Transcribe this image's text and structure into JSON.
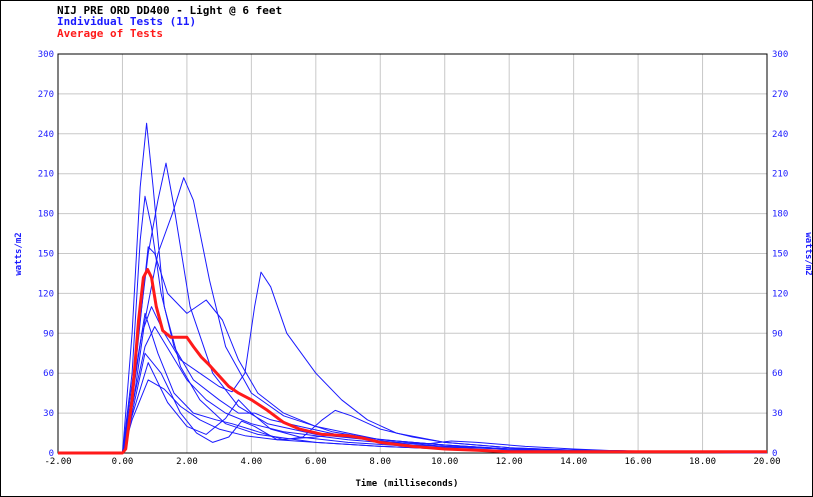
{
  "chart_data": {
    "type": "line",
    "title": "NIJ PRE ORD DD400 - Light @ 6 feet",
    "legend": [
      {
        "label": "Individual Tests (11)",
        "color": "#1a1aff"
      },
      {
        "label": "Average of Tests",
        "color": "#ff1a1a"
      }
    ],
    "xlabel": "Time (milliseconds)",
    "ylabel": "watts/m2",
    "ylabel_right": "watts/m2",
    "xlim": [
      -2,
      20
    ],
    "ylim": [
      0,
      300
    ],
    "x_ticks": [
      "-2.00",
      "0.00",
      "2.00",
      "4.00",
      "6.00",
      "8.00",
      "10.00",
      "12.00",
      "14.00",
      "16.00",
      "18.00",
      "20.00"
    ],
    "y_ticks": [
      "0",
      "30",
      "60",
      "90",
      "120",
      "150",
      "180",
      "210",
      "240",
      "270",
      "300"
    ],
    "grid": true,
    "series": [
      {
        "points": [
          [
            -2,
            0
          ],
          [
            0,
            0
          ],
          [
            0.3,
            90
          ],
          [
            0.55,
            200
          ],
          [
            0.75,
            248
          ],
          [
            0.95,
            200
          ],
          [
            1.3,
            110
          ],
          [
            1.8,
            65
          ],
          [
            2.4,
            40
          ],
          [
            3.2,
            22
          ],
          [
            4.2,
            14
          ],
          [
            6,
            8
          ],
          [
            8,
            5
          ],
          [
            10,
            3
          ],
          [
            12,
            2
          ],
          [
            14,
            1
          ],
          [
            20,
            0
          ]
        ]
      },
      {
        "points": [
          [
            -2,
            0
          ],
          [
            0,
            0
          ],
          [
            0.4,
            70
          ],
          [
            0.8,
            150
          ],
          [
            1.1,
            190
          ],
          [
            1.35,
            218
          ],
          [
            1.6,
            185
          ],
          [
            2.1,
            110
          ],
          [
            2.8,
            60
          ],
          [
            3.6,
            35
          ],
          [
            4.5,
            22
          ],
          [
            6,
            14
          ],
          [
            8,
            9
          ],
          [
            10,
            5
          ],
          [
            12,
            3
          ],
          [
            14,
            2
          ],
          [
            20,
            0
          ]
        ]
      },
      {
        "points": [
          [
            -2,
            0
          ],
          [
            0,
            0
          ],
          [
            0.35,
            40
          ],
          [
            0.7,
            100
          ],
          [
            1.1,
            150
          ],
          [
            1.55,
            180
          ],
          [
            1.9,
            207
          ],
          [
            2.2,
            190
          ],
          [
            2.7,
            130
          ],
          [
            3.2,
            80
          ],
          [
            4,
            45
          ],
          [
            5,
            28
          ],
          [
            6.5,
            16
          ],
          [
            8,
            10
          ],
          [
            10,
            6
          ],
          [
            12,
            3
          ],
          [
            14,
            2
          ],
          [
            20,
            0
          ]
        ]
      },
      {
        "points": [
          [
            -2,
            0
          ],
          [
            0,
            0
          ],
          [
            0.3,
            40
          ],
          [
            0.6,
            110
          ],
          [
            0.8,
            155
          ],
          [
            1,
            150
          ],
          [
            1.4,
            120
          ],
          [
            2,
            105
          ],
          [
            2.6,
            115
          ],
          [
            3.1,
            100
          ],
          [
            3.6,
            70
          ],
          [
            4.2,
            45
          ],
          [
            5,
            30
          ],
          [
            6,
            20
          ],
          [
            7,
            15
          ],
          [
            8,
            10
          ],
          [
            10,
            6
          ],
          [
            12,
            3
          ],
          [
            14,
            2
          ],
          [
            20,
            0
          ]
        ]
      },
      {
        "points": [
          [
            -2,
            0
          ],
          [
            0,
            0
          ],
          [
            0.3,
            60
          ],
          [
            0.55,
            160
          ],
          [
            0.7,
            193
          ],
          [
            0.9,
            170
          ],
          [
            1.2,
            120
          ],
          [
            1.6,
            80
          ],
          [
            2.2,
            55
          ],
          [
            3,
            40
          ],
          [
            3.6,
            30
          ],
          [
            4.1,
            30
          ],
          [
            4.6,
            25
          ],
          [
            5.5,
            20
          ],
          [
            7,
            12
          ],
          [
            9,
            6
          ],
          [
            12,
            3
          ],
          [
            20,
            0
          ]
        ]
      },
      {
        "points": [
          [
            -2,
            0
          ],
          [
            0,
            0
          ],
          [
            0.3,
            40
          ],
          [
            0.6,
            90
          ],
          [
            0.9,
            110
          ],
          [
            1.3,
            90
          ],
          [
            1.8,
            70
          ],
          [
            2.4,
            60
          ],
          [
            3,
            50
          ],
          [
            3.4,
            46
          ],
          [
            3.8,
            60
          ],
          [
            4.1,
            110
          ],
          [
            4.3,
            136
          ],
          [
            4.6,
            125
          ],
          [
            5.1,
            90
          ],
          [
            6,
            60
          ],
          [
            6.8,
            40
          ],
          [
            7.6,
            25
          ],
          [
            8.5,
            15
          ],
          [
            10,
            8
          ],
          [
            12,
            4
          ],
          [
            14,
            2
          ],
          [
            20,
            0
          ]
        ]
      },
      {
        "points": [
          [
            -2,
            0
          ],
          [
            0,
            0
          ],
          [
            0.3,
            35
          ],
          [
            0.7,
            80
          ],
          [
            1,
            95
          ],
          [
            1.5,
            75
          ],
          [
            2,
            55
          ],
          [
            2.6,
            40
          ],
          [
            3.2,
            30
          ],
          [
            4,
            22
          ],
          [
            5,
            16
          ],
          [
            6,
            13
          ],
          [
            7,
            10
          ],
          [
            8,
            8
          ],
          [
            9.5,
            7
          ],
          [
            10.2,
            9
          ],
          [
            11,
            8
          ],
          [
            12.5,
            5
          ],
          [
            14,
            3
          ],
          [
            16,
            1
          ],
          [
            20,
            0
          ]
        ]
      },
      {
        "points": [
          [
            -2,
            0
          ],
          [
            0,
            0
          ],
          [
            0.3,
            25
          ],
          [
            0.8,
            55
          ],
          [
            1.3,
            48
          ],
          [
            1.8,
            35
          ],
          [
            2.4,
            25
          ],
          [
            3,
            18
          ],
          [
            3.8,
            13
          ],
          [
            4.8,
            10
          ],
          [
            6,
            12
          ],
          [
            6.6,
            14
          ],
          [
            7.3,
            12
          ],
          [
            8.5,
            9
          ],
          [
            10,
            6
          ],
          [
            12,
            3
          ],
          [
            14,
            2
          ],
          [
            20,
            0
          ]
        ]
      },
      {
        "points": [
          [
            -2,
            0
          ],
          [
            0,
            0
          ],
          [
            0.3,
            45
          ],
          [
            0.7,
            105
          ],
          [
            1.1,
            75
          ],
          [
            1.6,
            45
          ],
          [
            2.2,
            30
          ],
          [
            2.9,
            25
          ],
          [
            3.4,
            22
          ],
          [
            4.2,
            16
          ],
          [
            5,
            10
          ],
          [
            5.6,
            12
          ],
          [
            6.2,
            25
          ],
          [
            6.6,
            32
          ],
          [
            7.1,
            28
          ],
          [
            8,
            18
          ],
          [
            9,
            12
          ],
          [
            10,
            8
          ],
          [
            12,
            4
          ],
          [
            14,
            2
          ],
          [
            20,
            0
          ]
        ]
      },
      {
        "points": [
          [
            -2,
            0
          ],
          [
            0,
            0
          ],
          [
            0.3,
            30
          ],
          [
            0.7,
            75
          ],
          [
            1.2,
            60
          ],
          [
            1.8,
            30
          ],
          [
            2.3,
            15
          ],
          [
            2.8,
            8
          ],
          [
            3.3,
            12
          ],
          [
            3.7,
            24
          ],
          [
            4.1,
            20
          ],
          [
            4.8,
            10
          ],
          [
            6,
            8
          ],
          [
            8,
            5
          ],
          [
            10,
            3
          ],
          [
            12,
            2
          ],
          [
            20,
            0
          ]
        ]
      },
      {
        "points": [
          [
            -2,
            0
          ],
          [
            0,
            0
          ],
          [
            0.3,
            28
          ],
          [
            0.8,
            68
          ],
          [
            1.4,
            38
          ],
          [
            2,
            20
          ],
          [
            2.6,
            14
          ],
          [
            3.2,
            26
          ],
          [
            3.6,
            40
          ],
          [
            4,
            30
          ],
          [
            4.6,
            18
          ],
          [
            5.5,
            12
          ],
          [
            7,
            8
          ],
          [
            9,
            5
          ],
          [
            12,
            3
          ],
          [
            14,
            2
          ],
          [
            20,
            0
          ]
        ]
      }
    ],
    "average": {
      "name": "Average of Tests",
      "points": [
        [
          -2,
          0
        ],
        [
          0,
          0
        ],
        [
          0.1,
          3
        ],
        [
          0.3,
          40
        ],
        [
          0.5,
          100
        ],
        [
          0.65,
          132
        ],
        [
          0.78,
          138
        ],
        [
          0.9,
          132
        ],
        [
          1.05,
          110
        ],
        [
          1.25,
          92
        ],
        [
          1.5,
          87
        ],
        [
          2,
          87
        ],
        [
          2.2,
          80
        ],
        [
          2.45,
          72
        ],
        [
          2.7,
          66
        ],
        [
          3,
          58
        ],
        [
          3.3,
          50
        ],
        [
          3.6,
          45
        ],
        [
          4,
          40
        ],
        [
          4.5,
          32
        ],
        [
          5,
          23
        ],
        [
          5.5,
          18
        ],
        [
          6.2,
          14
        ],
        [
          7,
          13
        ],
        [
          7.5,
          11
        ],
        [
          8,
          8
        ],
        [
          9,
          5
        ],
        [
          10,
          3
        ],
        [
          11,
          2
        ],
        [
          12,
          1
        ],
        [
          14,
          1
        ],
        [
          20,
          1
        ]
      ]
    }
  }
}
